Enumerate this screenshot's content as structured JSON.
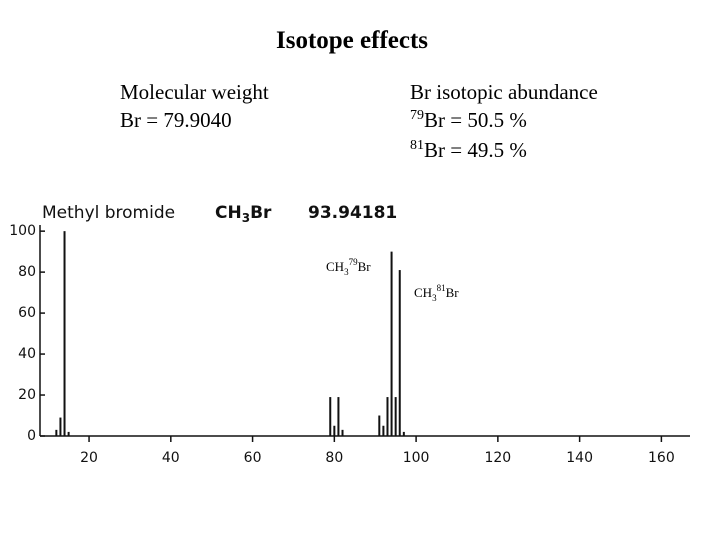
{
  "header": {
    "title": "Isotope effects"
  },
  "left_block": {
    "line1": "Molecular weight",
    "line2": "Br = 79.9040"
  },
  "right_block": {
    "line1": "Br isotopic abundance",
    "line2": {
      "sup": "79",
      "text": "Br = 50.5 %"
    },
    "line3": {
      "sup": "81",
      "text": "Br = 49.5 %"
    }
  },
  "chart_data": {
    "type": "stem",
    "compound": "Methyl bromide",
    "formula": {
      "base": "CH",
      "sub": "3",
      "rest": "Br"
    },
    "mass": "93.94181",
    "annotations": [
      {
        "base": "CH",
        "sub": "3",
        "sup": "79",
        "rest": "Br"
      },
      {
        "base": "CH",
        "sub": "3",
        "sup": "81",
        "rest": "Br"
      }
    ],
    "x": [
      12,
      13,
      14,
      15,
      79,
      80,
      81,
      82,
      91,
      92,
      93,
      94,
      95,
      96,
      97
    ],
    "values": [
      3,
      9,
      100,
      2,
      19,
      5,
      19,
      3,
      10,
      5,
      19,
      90,
      19,
      81,
      2
    ],
    "color": "#111111",
    "xlim": [
      8,
      167
    ],
    "ylim": [
      0,
      103
    ],
    "xticks": [
      20,
      40,
      60,
      80,
      100,
      120,
      140,
      160
    ],
    "yticks": [
      0,
      20,
      40,
      60,
      80,
      100
    ]
  }
}
